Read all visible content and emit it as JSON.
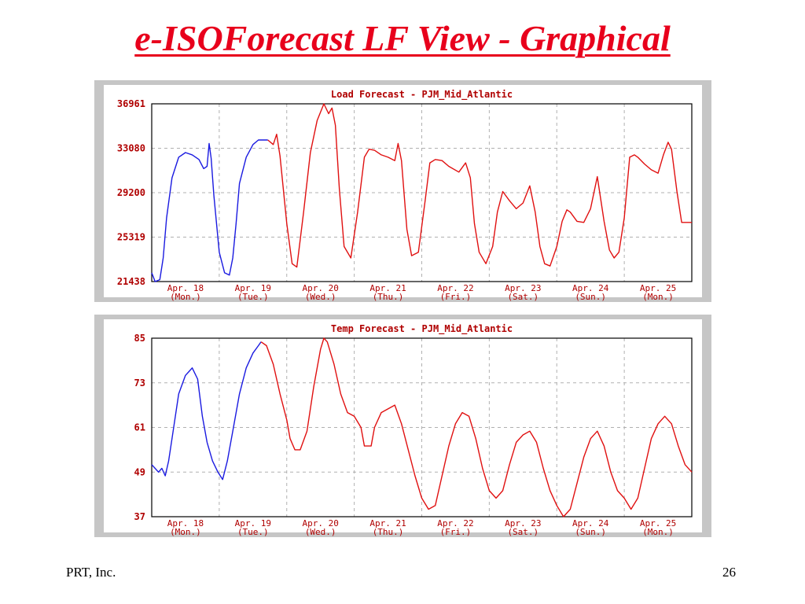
{
  "slide": {
    "title": "e-ISOForecast LF View - Graphical",
    "footer_left": "PRT, Inc.",
    "page_number": "26"
  },
  "colors": {
    "title": "#e8001c",
    "axis_text": "#b00000",
    "history_line": "#1a1ae0",
    "forecast_line": "#e01010",
    "grid": "#b0b0b0",
    "frame": "#c6c6c6"
  },
  "chart_data": [
    {
      "type": "line",
      "title": "Load Forecast - PJM_Mid_Atlantic",
      "xlabel": "",
      "ylabel": "",
      "ylim": [
        21438,
        36961
      ],
      "yticks": [
        36961,
        33080,
        29200,
        25319,
        21438
      ],
      "xlim": [
        0,
        8
      ],
      "xticks": [
        {
          "date": "Apr. 18",
          "day": "(Mon.)"
        },
        {
          "date": "Apr. 19",
          "day": "(Tue.)"
        },
        {
          "date": "Apr. 20",
          "day": "(Wed.)"
        },
        {
          "date": "Apr. 21",
          "day": "(Thu.)"
        },
        {
          "date": "Apr. 22",
          "day": "(Fri.)"
        },
        {
          "date": "Apr. 23",
          "day": "(Sat.)"
        },
        {
          "date": "Apr. 24",
          "day": "(Sun.)"
        },
        {
          "date": "Apr. 25",
          "day": "(Mon.)"
        }
      ],
      "grid": true,
      "series": [
        {
          "role": "history",
          "x": [
            0,
            0.05,
            0.12,
            0.17,
            0.22,
            0.3,
            0.4,
            0.5,
            0.6,
            0.7,
            0.77,
            0.82,
            0.85,
            0.88,
            0.92,
            1.0,
            1.08,
            1.15,
            1.2,
            1.25,
            1.3,
            1.4,
            1.5,
            1.58,
            1.65,
            1.72
          ],
          "values": [
            22200,
            21438,
            21600,
            23500,
            27000,
            30500,
            32300,
            32700,
            32500,
            32100,
            31300,
            31500,
            33500,
            32200,
            29000,
            24000,
            22200,
            22000,
            23500,
            26500,
            30000,
            32300,
            33400,
            33800,
            33800,
            33800
          ]
        },
        {
          "role": "forecast",
          "x": [
            1.72,
            1.8,
            1.85,
            1.9,
            2.0,
            2.08,
            2.15,
            2.25,
            2.35,
            2.45,
            2.55,
            2.62,
            2.67,
            2.72,
            2.78,
            2.85,
            2.95,
            3.05,
            3.15,
            3.22,
            3.3,
            3.4,
            3.5,
            3.6,
            3.65,
            3.7,
            3.78,
            3.85,
            3.95,
            4.05,
            4.12,
            4.2,
            4.3,
            4.4,
            4.55,
            4.65,
            4.72,
            4.78,
            4.85,
            4.95,
            5.05,
            5.12,
            5.2,
            5.3,
            5.4,
            5.5,
            5.6,
            5.68,
            5.75,
            5.82,
            5.9,
            6.0,
            6.08,
            6.15,
            6.2,
            6.3,
            6.4,
            6.5,
            6.6,
            6.7,
            6.78,
            6.85,
            6.92,
            7.0,
            7.08,
            7.15,
            7.2,
            7.3,
            7.4,
            7.5,
            7.58,
            7.65,
            7.7,
            7.78,
            7.85,
            7.9,
            8.0
          ],
          "values": [
            33800,
            33400,
            34300,
            32400,
            26500,
            23000,
            22700,
            27500,
            32700,
            35500,
            36961,
            36100,
            36600,
            35100,
            29500,
            24500,
            23500,
            27500,
            32300,
            33000,
            32900,
            32500,
            32300,
            32000,
            33500,
            32000,
            26000,
            23700,
            24000,
            28500,
            31800,
            32100,
            32000,
            31500,
            31000,
            31800,
            30500,
            26500,
            24000,
            23000,
            24500,
            27500,
            29300,
            28500,
            27800,
            28300,
            29800,
            27500,
            24500,
            23000,
            22800,
            24500,
            26700,
            27700,
            27500,
            26700,
            26600,
            27800,
            30600,
            26700,
            24200,
            23500,
            24000,
            27000,
            32300,
            32500,
            32300,
            31700,
            31200,
            30900,
            32500,
            33600,
            33000,
            29300,
            26600,
            26600,
            26600
          ]
        }
      ]
    },
    {
      "type": "line",
      "title": "Temp Forecast - PJM_Mid_Atlantic",
      "xlabel": "",
      "ylabel": "",
      "ylim": [
        37,
        85
      ],
      "yticks": [
        85,
        73,
        61,
        49,
        37
      ],
      "xlim": [
        0,
        8
      ],
      "xticks": [
        {
          "date": "Apr. 18",
          "day": "(Mon.)"
        },
        {
          "date": "Apr. 19",
          "day": "(Tue.)"
        },
        {
          "date": "Apr. 20",
          "day": "(Wed.)"
        },
        {
          "date": "Apr. 21",
          "day": "(Thu.)"
        },
        {
          "date": "Apr. 22",
          "day": "(Fri.)"
        },
        {
          "date": "Apr. 23",
          "day": "(Sat.)"
        },
        {
          "date": "Apr. 24",
          "day": "(Sun.)"
        },
        {
          "date": "Apr. 25",
          "day": "(Mon.)"
        }
      ],
      "grid": true,
      "series": [
        {
          "role": "history",
          "x": [
            0,
            0.05,
            0.1,
            0.15,
            0.2,
            0.25,
            0.3,
            0.4,
            0.5,
            0.55,
            0.6,
            0.68,
            0.75,
            0.82,
            0.9,
            0.98,
            1.05,
            1.12,
            1.15,
            1.2,
            1.3,
            1.4,
            1.5,
            1.58,
            1.62
          ],
          "values": [
            51,
            50,
            49,
            50,
            48,
            52,
            58,
            70,
            75,
            76,
            77,
            74,
            64,
            57,
            52,
            49,
            47,
            52,
            55,
            60,
            70,
            77,
            81,
            83,
            84
          ]
        },
        {
          "role": "forecast",
          "x": [
            1.62,
            1.7,
            1.8,
            1.9,
            2.0,
            2.05,
            2.12,
            2.2,
            2.3,
            2.4,
            2.5,
            2.55,
            2.6,
            2.7,
            2.8,
            2.9,
            3.0,
            3.1,
            3.15,
            3.2,
            3.25,
            3.3,
            3.4,
            3.5,
            3.6,
            3.7,
            3.8,
            3.9,
            4.0,
            4.1,
            4.2,
            4.3,
            4.4,
            4.5,
            4.6,
            4.7,
            4.8,
            4.9,
            5.0,
            5.1,
            5.2,
            5.3,
            5.4,
            5.5,
            5.6,
            5.7,
            5.8,
            5.9,
            6.0,
            6.1,
            6.2,
            6.3,
            6.4,
            6.5,
            6.6,
            6.7,
            6.8,
            6.9,
            7.0,
            7.1,
            7.2,
            7.3,
            7.4,
            7.5,
            7.6,
            7.7,
            7.8,
            7.9,
            8.0
          ],
          "values": [
            84,
            83,
            78,
            70,
            63,
            58,
            55,
            55,
            60,
            72,
            82,
            85,
            84,
            78,
            70,
            65,
            64,
            61,
            56,
            56,
            56,
            61,
            65,
            66,
            67,
            62,
            55,
            48,
            42,
            39,
            40,
            48,
            56,
            62,
            65,
            64,
            58,
            50,
            44,
            42,
            44,
            51,
            57,
            59,
            60,
            57,
            50,
            44,
            40,
            37,
            39,
            46,
            53,
            58,
            60,
            56,
            49,
            44,
            42,
            39,
            42,
            50,
            58,
            62,
            64,
            62,
            56,
            51,
            49
          ]
        }
      ]
    }
  ]
}
